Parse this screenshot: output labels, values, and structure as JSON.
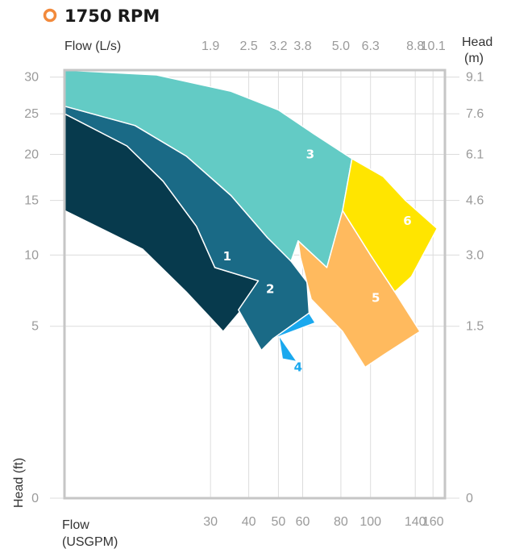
{
  "chart_data": {
    "type": "area",
    "title": "1750 RPM",
    "title_marker_color": "#f28a3c",
    "top_axis": {
      "label": "Flow (L/s)",
      "ticks": [
        {
          "label": "1.9",
          "usgpm": 30
        },
        {
          "label": "2.5",
          "usgpm": 40
        },
        {
          "label": "3.2",
          "usgpm": 50
        },
        {
          "label": "3.8",
          "usgpm": 60
        },
        {
          "label": "5.0",
          "usgpm": 80
        },
        {
          "label": "6.3",
          "usgpm": 100
        },
        {
          "label": "8.8",
          "usgpm": 140
        },
        {
          "label": "10.1",
          "usgpm": 160
        }
      ]
    },
    "bottom_axis": {
      "label_line1": "Flow",
      "label_line2": "(USGPM)",
      "scale": "log",
      "xlim": [
        10,
        175
      ],
      "ticks": [
        30,
        40,
        50,
        60,
        80,
        100,
        140,
        160
      ]
    },
    "left_axis": {
      "label": "Head (ft)",
      "scale": "sqrt",
      "ylim": [
        0,
        31
      ],
      "ticks": [
        0,
        5,
        10,
        15,
        20,
        25,
        30
      ]
    },
    "right_axis": {
      "label_line1": "Head",
      "label_line2": "(m)",
      "ticks": [
        {
          "label": "0",
          "ft": 0
        },
        {
          "label": "1.5",
          "ft": 5
        },
        {
          "label": "3.0",
          "ft": 10
        },
        {
          "label": "4.6",
          "ft": 15
        },
        {
          "label": "6.1",
          "ft": 20
        },
        {
          "label": "7.6",
          "ft": 25
        },
        {
          "label": "9.1",
          "ft": 30
        }
      ]
    },
    "grid": true,
    "regions": [
      {
        "name": "1",
        "color": "#073a4d",
        "label_color": "#ffffff",
        "label_at": [
          34,
          9.9
        ],
        "polygon": [
          [
            10,
            25
          ],
          [
            16,
            21
          ],
          [
            21,
            17
          ],
          [
            27,
            12.5
          ],
          [
            31,
            9
          ],
          [
            43,
            8
          ],
          [
            39,
            6.3
          ],
          [
            33,
            4.7
          ],
          [
            25,
            7.2
          ],
          [
            18,
            10.5
          ],
          [
            10,
            14
          ]
        ]
      },
      {
        "name": "2",
        "color": "#1a6a86",
        "label_color": "#ffffff",
        "label_at": [
          47,
          7.4
        ],
        "polygon": [
          [
            10,
            26
          ],
          [
            17,
            23.5
          ],
          [
            25,
            19.8
          ],
          [
            35,
            15.5
          ],
          [
            46,
            11.5
          ],
          [
            55,
            9.5
          ],
          [
            62,
            7.9
          ],
          [
            63,
            5.8
          ],
          [
            48,
            4.3
          ],
          [
            44,
            3.7
          ],
          [
            37,
            6
          ],
          [
            43,
            8
          ],
          [
            31,
            9
          ],
          [
            27,
            12.5
          ],
          [
            21,
            17
          ],
          [
            16,
            21
          ],
          [
            10,
            25
          ]
        ]
      },
      {
        "name": "3",
        "color": "#63cbc5",
        "label_color": "#ffffff",
        "label_at": [
          63.5,
          20
        ],
        "polygon": [
          [
            10,
            31
          ],
          [
            20,
            30.3
          ],
          [
            35,
            28
          ],
          [
            50,
            25.5
          ],
          [
            65,
            22.5
          ],
          [
            87,
            19.5
          ],
          [
            81,
            14
          ],
          [
            72,
            9
          ],
          [
            58,
            11.2
          ],
          [
            55,
            9.5
          ],
          [
            46,
            11.5
          ],
          [
            35,
            15.5
          ],
          [
            25,
            19.8
          ],
          [
            17,
            23.5
          ],
          [
            10,
            26
          ]
        ]
      },
      {
        "name": "4",
        "color": "#1aa8ee",
        "label_color": "#1aa8ee",
        "label_at": [
          58,
          2.9
        ],
        "polygon": [
          [
            48,
            4.3
          ],
          [
            63,
            5.8
          ],
          [
            66,
            5.2
          ],
          [
            48,
            4.3
          ]
        ]
      },
      {
        "name": "5",
        "color": "#ffba5e",
        "label_color": "#ffffff",
        "label_at": [
          104,
          6.8
        ],
        "polygon": [
          [
            58,
            11.2
          ],
          [
            72,
            9
          ],
          [
            81,
            14
          ],
          [
            100,
            10
          ],
          [
            120,
            7.2
          ],
          [
            145,
            4.7
          ],
          [
            111,
            3.5
          ],
          [
            96,
            2.9
          ],
          [
            81,
            4.7
          ],
          [
            64,
            6.7
          ],
          [
            59,
            9.8
          ]
        ]
      },
      {
        "name": "6",
        "color": "#ffe500",
        "label_color": "#ffffff",
        "label_at": [
          132,
          13
        ],
        "polygon": [
          [
            87,
            19.5
          ],
          [
            110,
            17.5
          ],
          [
            130,
            15
          ],
          [
            165,
            12.3
          ],
          [
            136,
            8.3
          ],
          [
            120,
            7.2
          ],
          [
            100,
            10
          ],
          [
            81,
            14
          ]
        ]
      }
    ]
  }
}
